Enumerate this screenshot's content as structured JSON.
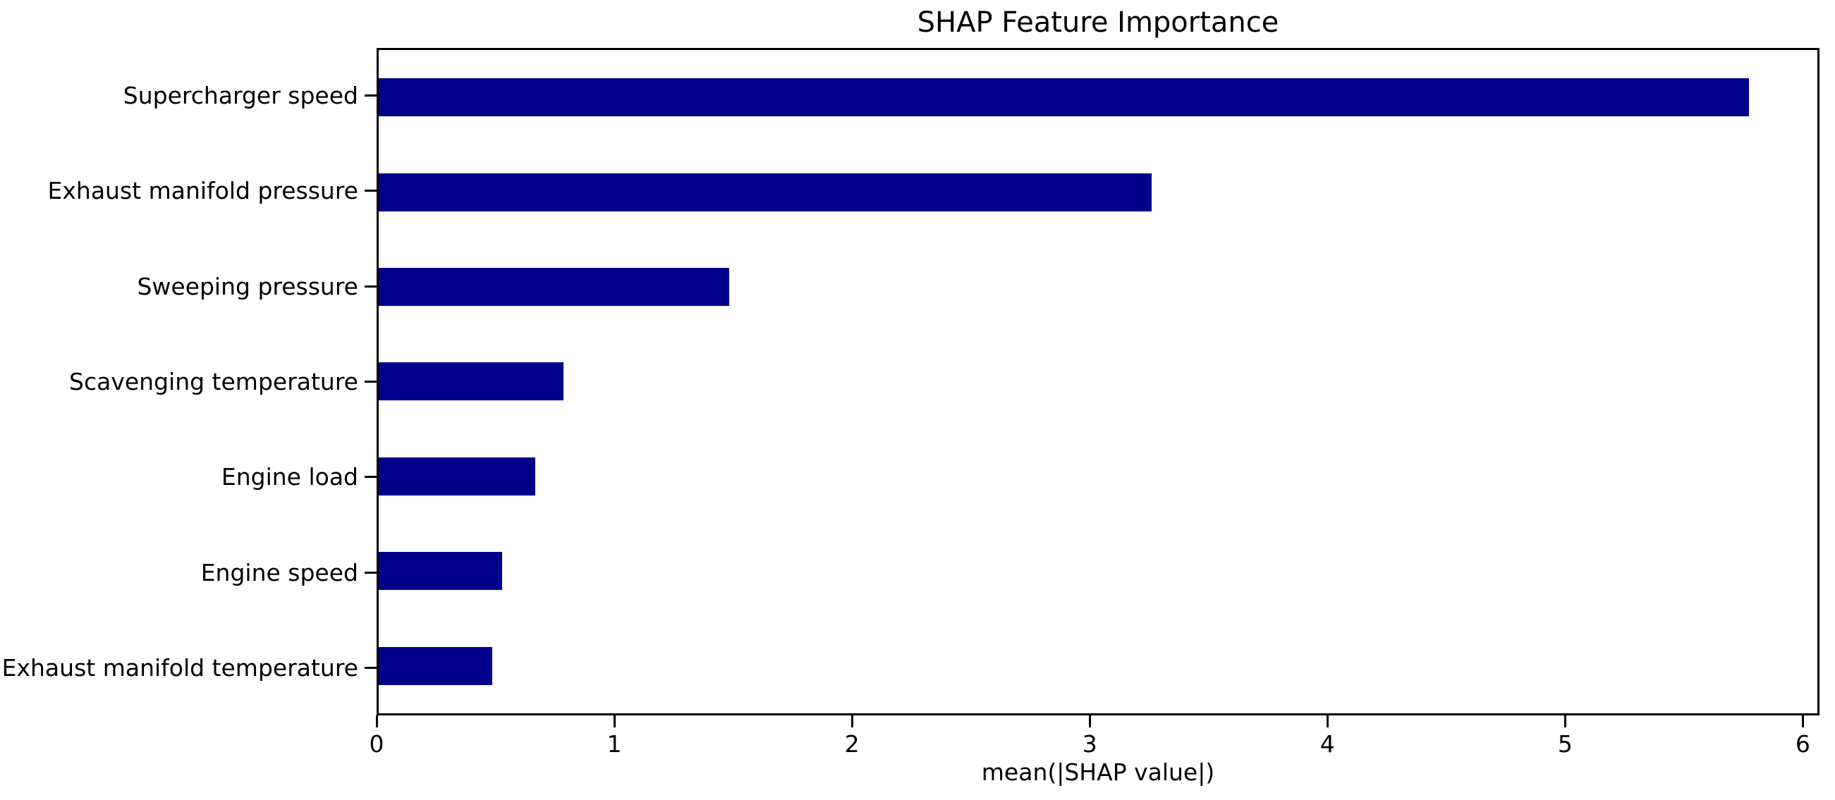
{
  "chart_data": {
    "type": "bar",
    "orientation": "horizontal",
    "title": "SHAP Feature Importance",
    "xlabel": "mean(|SHAP value|)",
    "ylabel": "",
    "categories": [
      "Supercharger speed",
      "Exhaust manifold pressure",
      "Sweeping pressure",
      "Scavenging temperature",
      "Engine load",
      "Engine speed",
      "Exhaust manifold temperature"
    ],
    "values": [
      5.78,
      3.26,
      1.48,
      0.78,
      0.66,
      0.52,
      0.48
    ],
    "xlim": [
      0,
      6.07
    ],
    "xticks": [
      0,
      1,
      2,
      3,
      4,
      5,
      6
    ],
    "xtick_labels": [
      "0",
      "1",
      "2",
      "3",
      "4",
      "5",
      "6"
    ],
    "grid": false,
    "legend": null,
    "bar_color": "#00008B"
  },
  "colors": {
    "bar": "#00008B",
    "text": "#000000",
    "spine": "#000000",
    "background": "#ffffff"
  }
}
